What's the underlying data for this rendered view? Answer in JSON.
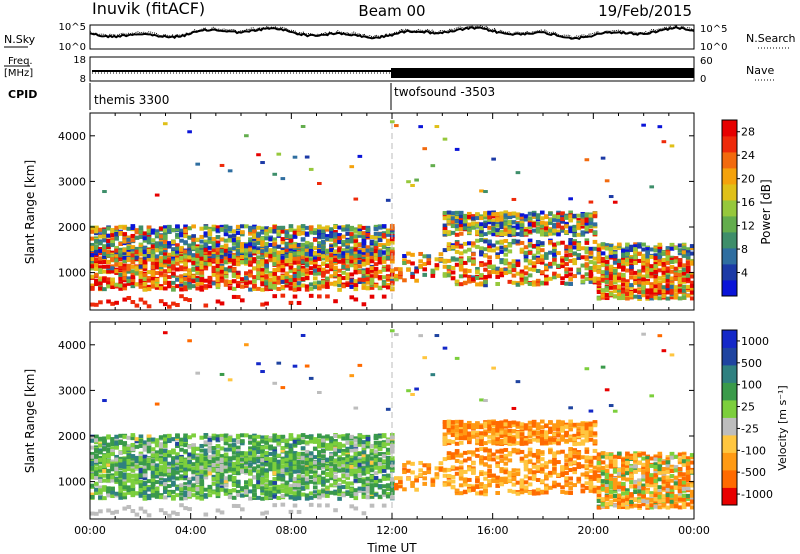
{
  "header": {
    "station": "Inuvik (fitACF)",
    "beam": "Beam 00",
    "date": "19/Feb/2015"
  },
  "top_panels": {
    "noise_left_label": "N.Sky",
    "noise_right_label": "N.Search",
    "noise_left_ticks": [
      "10^5",
      "10^0"
    ],
    "noise_right_ticks": [
      "10^5",
      "10^0"
    ],
    "freq_label_line1": "Freq.",
    "freq_label_line2": "[MHz]",
    "freq_ticks": [
      "18",
      "8"
    ],
    "nave_label": "Nave",
    "nave_ticks": [
      "60",
      "0"
    ],
    "cpid_label": "CPID",
    "cpid_segments": [
      {
        "name": "themis 3300",
        "start_hour": 0,
        "end_hour": 12
      },
      {
        "name": "twofsound -3503",
        "start_hour": 12,
        "end_hour": 24
      }
    ]
  },
  "colors": {
    "power_scale": [
      "#0a14d8",
      "#1c3aa6",
      "#2f6ea0",
      "#3e8e6a",
      "#63ad4d",
      "#96c83c",
      "#e0c018",
      "#f4a20c",
      "#f26a0e",
      "#ee2a0a",
      "#e60000"
    ],
    "velocity_scale": [
      "#e80000",
      "#ff6a00",
      "#ff9a14",
      "#ffc640",
      "#bdbdbd",
      "#7ccf3c",
      "#3a9a4a",
      "#2f8080",
      "#1f44a0",
      "#1428c8"
    ]
  },
  "chart_data": [
    {
      "type": "heatmap",
      "title": "Power",
      "xlabel": "",
      "ylabel": "Slant Range [km]",
      "xlim": [
        0,
        24
      ],
      "ylim": [
        180,
        4500
      ],
      "y_ticks": [
        "1000",
        "2000",
        "3000",
        "4000"
      ],
      "colorbar_label": "Power [dB]",
      "colorbar_ticks": [
        "4",
        "8",
        "12",
        "16",
        "20",
        "24",
        "28"
      ],
      "colorbar_range": [
        0,
        30
      ]
    },
    {
      "type": "heatmap",
      "title": "Velocity",
      "xlabel": "Time UT",
      "ylabel": "Slant Range [km]",
      "xlim": [
        0,
        24
      ],
      "ylim": [
        180,
        4500
      ],
      "x_ticks": [
        "00:00",
        "04:00",
        "08:00",
        "12:00",
        "16:00",
        "20:00",
        "00:00"
      ],
      "y_ticks": [
        "1000",
        "2000",
        "3000",
        "4000"
      ],
      "colorbar_label": "Velocity [m s⁻¹]",
      "colorbar_ticks": [
        "1000",
        "500",
        "100",
        "25",
        "-25",
        "-100",
        "-500",
        "-1000"
      ]
    }
  ]
}
